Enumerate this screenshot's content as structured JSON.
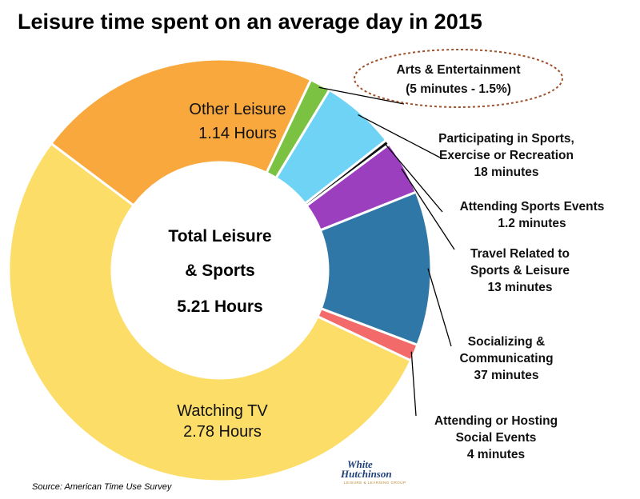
{
  "title": "Leisure time spent on an average day in 2015",
  "center": {
    "line1": "Total Leisure",
    "line2": "& Sports",
    "line3": "5.21 Hours"
  },
  "source": "Source: American Time Use Survey",
  "logo": {
    "line1": "White",
    "line2": "Hutchinson",
    "tagline": "LEISURE & LEARNING GROUP"
  },
  "chart_data": {
    "type": "pie",
    "title": "Leisure time spent on an average day in 2015",
    "total_label": "5.21 Hours",
    "unit": "minutes",
    "slices": [
      {
        "key": "arts",
        "label_lines": [
          "Arts & Entertainment",
          "(5 minutes - 1.5%)"
        ],
        "value": 5,
        "color": "#7cc242"
      },
      {
        "key": "sports",
        "label_lines": [
          "Participating in Sports,",
          "Exercise or Recreation",
          "18 minutes"
        ],
        "value": 18,
        "color": "#6fd3f6"
      },
      {
        "key": "attending",
        "label_lines": [
          "Attending Sports Events",
          "1.2 minutes"
        ],
        "value": 1.2,
        "color": "#111111"
      },
      {
        "key": "travel",
        "label_lines": [
          "Travel Related to",
          "Sports & Leisure",
          "13 minutes"
        ],
        "value": 13,
        "color": "#9b3fbf"
      },
      {
        "key": "socializing",
        "label_lines": [
          "Socializing &",
          "Communicating",
          "37 minutes"
        ],
        "value": 37,
        "color": "#2f77a6"
      },
      {
        "key": "hosting",
        "label_lines": [
          "Attending or Hosting",
          "Social Events",
          "4 minutes"
        ],
        "value": 4,
        "color": "#f26a6a"
      },
      {
        "key": "tv",
        "label_lines": [
          "Watching TV",
          "2.78 Hours"
        ],
        "value": 166.8,
        "color": "#fbdd67"
      },
      {
        "key": "other",
        "label_lines": [
          "Other Leisure",
          "1.14 Hours"
        ],
        "value": 68.4,
        "color": "#f9a83e"
      }
    ]
  }
}
